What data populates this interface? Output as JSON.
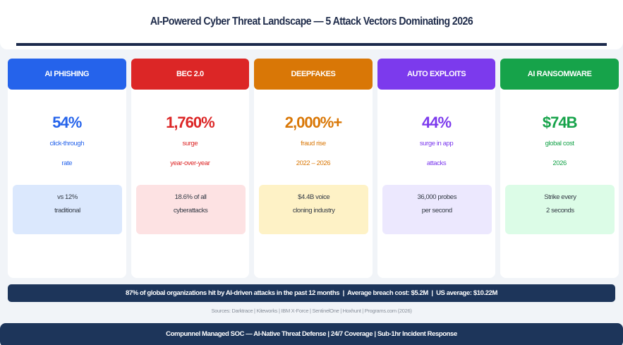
{
  "header": {
    "title": "AI-Powered Cyber Threat Landscape — 5 Attack Vectors Dominating 2026"
  },
  "cards": [
    {
      "label": "AI PHISHING",
      "stat": "54%",
      "sub1": "click-through",
      "sub2": "rate",
      "box_line1": "vs 12%",
      "box_line2": "traditional",
      "colors": {
        "accent": "#2563eb",
        "box_bg": "#dbe8fd"
      }
    },
    {
      "label": "BEC 2.0",
      "stat": "1,760%",
      "sub1": "surge",
      "sub2": "year-over-year",
      "box_line1": "18.6% of all",
      "box_line2": "cyberattacks",
      "colors": {
        "accent": "#dc2626",
        "box_bg": "#fde2e3"
      }
    },
    {
      "label": "DEEPFAKES",
      "stat": "2,000%+",
      "sub1": "fraud rise",
      "sub2": "2022 – 2026",
      "box_line1": "$4.4B voice",
      "box_line2": "cloning industry",
      "colors": {
        "accent": "#d97706",
        "box_bg": "#fef2c6"
      }
    },
    {
      "label": "AUTO EXPLOITS",
      "stat": "44%",
      "sub1": "surge in app",
      "sub2": "attacks",
      "box_line1": "36,000 probes",
      "box_line2": "per second",
      "colors": {
        "accent": "#7c3aed",
        "box_bg": "#ece8fe"
      }
    },
    {
      "label": "AI RANSOMWARE",
      "stat": "$74B",
      "sub1": "global cost",
      "sub2": "2026",
      "box_line1": "Strike every",
      "box_line2": "2 seconds",
      "colors": {
        "accent": "#16a34a",
        "box_bg": "#dcfce7"
      }
    }
  ],
  "stat_bar": {
    "text": "87% of global organizations hit by AI-driven attacks in the past 12 months  |  Average breach cost: $5.2M  |  US average: $10.22M"
  },
  "sources": {
    "text": "Sources: Darktrace | Kiteworks | IBM X-Force | SentinelOne | Hoxhunt | Programs.com (2026)"
  },
  "footer": {
    "text": "Compunnel Managed SOC — AI-Native Threat Defense | 24/7 Coverage | Sub-1hr Incident Response"
  },
  "colors": {
    "page_bg": "#f1f4f8",
    "navy": "#1d355a",
    "title_text": "#1e2b4a"
  }
}
